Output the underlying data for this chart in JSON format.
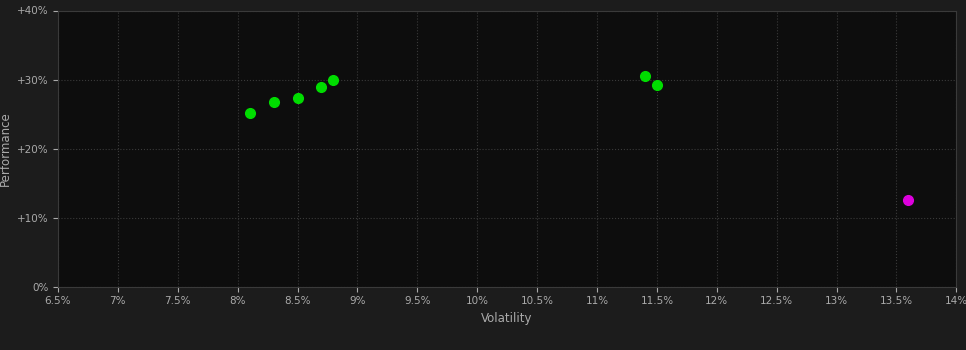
{
  "background_color": "#1c1c1c",
  "plot_bg_color": "#0d0d0d",
  "grid_color": "#3a3a3a",
  "grid_style": ":",
  "xlabel": "Volatility",
  "ylabel": "Performance",
  "xlabel_color": "#aaaaaa",
  "ylabel_color": "#aaaaaa",
  "tick_color": "#aaaaaa",
  "xlim": [
    0.065,
    0.14
  ],
  "ylim": [
    0.0,
    0.4
  ],
  "xticks": [
    0.065,
    0.07,
    0.075,
    0.08,
    0.085,
    0.09,
    0.095,
    0.1,
    0.105,
    0.11,
    0.115,
    0.12,
    0.125,
    0.13,
    0.135,
    0.14
  ],
  "yticks": [
    0.0,
    0.1,
    0.2,
    0.3,
    0.4
  ],
  "green_points": [
    [
      0.081,
      0.252
    ],
    [
      0.083,
      0.268
    ],
    [
      0.085,
      0.273
    ],
    [
      0.087,
      0.29
    ],
    [
      0.088,
      0.3
    ],
    [
      0.114,
      0.305
    ],
    [
      0.115,
      0.292
    ]
  ],
  "magenta_points": [
    [
      0.136,
      0.126
    ]
  ],
  "green_color": "#00dd00",
  "magenta_color": "#dd00dd",
  "marker_size": 7
}
